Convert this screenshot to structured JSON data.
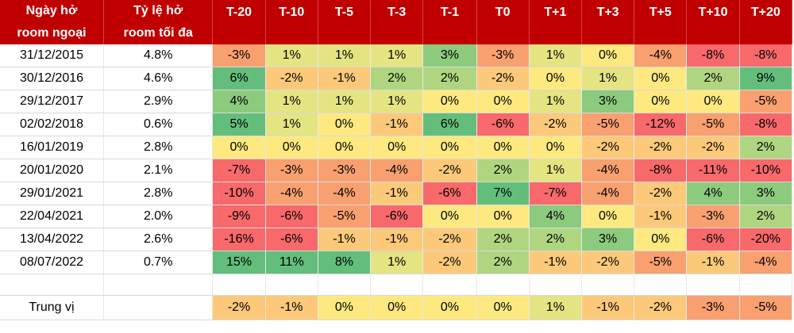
{
  "headers": {
    "date_line1": "Ngày hở",
    "date_line2": "room ngoại",
    "ratio_line1": "Tỷ lệ hở",
    "ratio_line2": "room tối đa",
    "periods": [
      "T-20",
      "T-10",
      "T-5",
      "T-3",
      "T-1",
      "T0",
      "T+1",
      "T+3",
      "T+5",
      "T+10",
      "T+20"
    ]
  },
  "rows": [
    {
      "date": "31/12/2015",
      "ratio": "4.8%",
      "values": [
        "-3%",
        "1%",
        "1%",
        "1%",
        "3%",
        "-3%",
        "1%",
        "0%",
        "-4%",
        "-8%",
        "-8%"
      ]
    },
    {
      "date": "30/12/2016",
      "ratio": "4.6%",
      "values": [
        "6%",
        "-2%",
        "-1%",
        "2%",
        "2%",
        "-2%",
        "0%",
        "1%",
        "0%",
        "2%",
        "9%"
      ]
    },
    {
      "date": "29/12/2017",
      "ratio": "2.9%",
      "values": [
        "4%",
        "1%",
        "1%",
        "1%",
        "0%",
        "0%",
        "1%",
        "3%",
        "0%",
        "0%",
        "-5%"
      ]
    },
    {
      "date": "02/02/2018",
      "ratio": "0.6%",
      "values": [
        "5%",
        "1%",
        "0%",
        "-1%",
        "6%",
        "-6%",
        "-2%",
        "-5%",
        "-12%",
        "-5%",
        "-8%"
      ]
    },
    {
      "date": "16/01/2019",
      "ratio": "2.8%",
      "values": [
        "0%",
        "0%",
        "0%",
        "0%",
        "0%",
        "0%",
        "0%",
        "-2%",
        "-2%",
        "-2%",
        "2%"
      ]
    },
    {
      "date": "20/01/2020",
      "ratio": "2.1%",
      "values": [
        "-7%",
        "-3%",
        "-3%",
        "-4%",
        "-2%",
        "2%",
        "1%",
        "-4%",
        "-8%",
        "-11%",
        "-10%"
      ]
    },
    {
      "date": "29/01/2021",
      "ratio": "2.8%",
      "values": [
        "-10%",
        "-4%",
        "-4%",
        "-1%",
        "-6%",
        "7%",
        "-7%",
        "-4%",
        "-2%",
        "4%",
        "3%"
      ]
    },
    {
      "date": "22/04/2021",
      "ratio": "2.0%",
      "values": [
        "-9%",
        "-6%",
        "-5%",
        "-6%",
        "0%",
        "0%",
        "4%",
        "0%",
        "-1%",
        "-3%",
        "2%"
      ]
    },
    {
      "date": "13/04/2022",
      "ratio": "2.6%",
      "values": [
        "-16%",
        "-6%",
        "-1%",
        "-1%",
        "-2%",
        "2%",
        "2%",
        "3%",
        "0%",
        "-6%",
        "-20%"
      ]
    },
    {
      "date": "08/07/2022",
      "ratio": "0.7%",
      "values": [
        "15%",
        "11%",
        "8%",
        "1%",
        "-2%",
        "2%",
        "-1%",
        "-2%",
        "-5%",
        "-1%",
        "-4%"
      ]
    }
  ],
  "median": {
    "label": "Trung vị",
    "values": [
      "-2%",
      "-1%",
      "0%",
      "0%",
      "0%",
      "0%",
      "1%",
      "-1%",
      "-2%",
      "-3%",
      "-5%"
    ]
  },
  "colors": {
    "header_bg": "#c00000",
    "strong_negative": "#f8696b",
    "negative": "#f9a070",
    "neutral": "#fde980",
    "positive": "#b0d580",
    "strong_positive": "#63be7b"
  }
}
